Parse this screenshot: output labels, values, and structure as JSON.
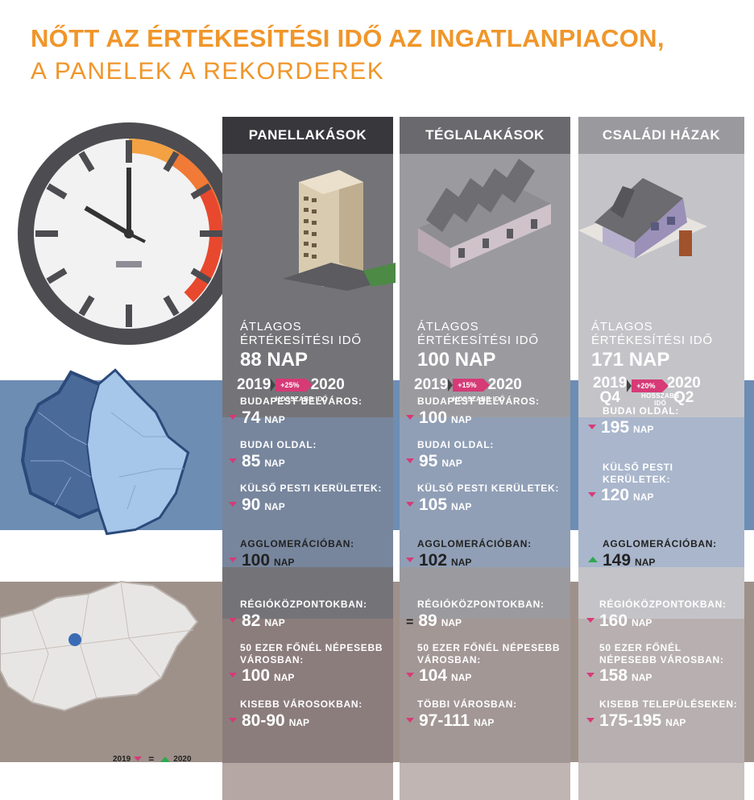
{
  "title": {
    "line1": "NŐTT AZ ÉRTÉKESÍTÉSI IDŐ AZ INGATLANPIACON,",
    "line2": "A PANELEK A REKORDEREK"
  },
  "common": {
    "avg_label_1": "ÁTLAGOS",
    "avg_label_2": "ÉRTÉKESÍTÉSI IDŐ",
    "nap": "NAP",
    "hosszabb": "HOSSZABB IDŐ",
    "hosszabb_1": "HOSSZABB",
    "hosszabb_2": "IDŐ"
  },
  "columns": [
    {
      "header": "PANELLAKÁSOK",
      "avg": "88 NAP",
      "y1": "2019",
      "y2": "2020",
      "change": "+25%",
      "blue": [
        {
          "label": "BUDAPEST BELVÁROS:",
          "value": "74"
        },
        {
          "label": "BUDAI OLDAL:",
          "value": "85"
        },
        {
          "label": "KÜLSŐ PESTI KERÜLETEK:",
          "value": "90"
        }
      ],
      "agglo": {
        "label": "AGGLOMERÁCIÓBAN:",
        "value": "100"
      },
      "brown": [
        {
          "label": "RÉGIÓKÖZPONTOKBAN:",
          "value": "82"
        },
        {
          "label1": "50 EZER FŐNÉL NÉPESEBB",
          "label2": "VÁROSBAN:",
          "value": "100"
        },
        {
          "label": "KISEBB VÁROSOKBAN:",
          "value": "80-90"
        }
      ]
    },
    {
      "header": "TÉGLALAKÁSOK",
      "avg": "100 NAP",
      "y1": "2019",
      "y2": "2020",
      "change": "+15%",
      "blue": [
        {
          "label": "BUDAPEST BELVÁROS:",
          "value": "100"
        },
        {
          "label": "BUDAI OLDAL:",
          "value": "95"
        },
        {
          "label": "KÜLSŐ PESTI KERÜLETEK:",
          "value": "105"
        }
      ],
      "agglo": {
        "label": "AGGLOMERÁCIÓBAN:",
        "value": "102"
      },
      "brown": [
        {
          "label": "RÉGIÓKÖZPONTOKBAN:",
          "value": "89"
        },
        {
          "label1": "50 EZER FŐNÉL NÉPESEBB",
          "label2": "VÁROSBAN:",
          "value": "104"
        },
        {
          "label": "TÖBBI VÁROSBAN:",
          "value": "97-111"
        }
      ]
    },
    {
      "header": "CSALÁDI HÁZAK",
      "avg": "171 NAP",
      "y1": "2019",
      "y1b": "Q4",
      "y2": "2020",
      "y2b": "Q2",
      "change": "+20%",
      "blue": [
        {
          "label": "BUDAI OLDAL:",
          "value": "195"
        },
        {
          "label1": "KÜLSŐ PESTI",
          "label2": "KERÜLETEK:",
          "value": "120"
        }
      ],
      "agglo": {
        "label": "AGGLOMERÁCIÓBAN:",
        "value": "149"
      },
      "brown": [
        {
          "label": "RÉGIÓKÖZPONTOKBAN:",
          "value": "160"
        },
        {
          "label1": "50 EZER FŐNÉL",
          "label2": "NÉPESEBB VÁROSBAN:",
          "value": "158"
        },
        {
          "label": "KISEBB TELEPÜLÉSEKEN:",
          "value": "175-195"
        }
      ]
    }
  ],
  "legend": {
    "y1": "2019",
    "y2": "2020"
  },
  "colors": {
    "accent": "#f0962a",
    "down": "#d63a77",
    "up": "#2fa84f",
    "blue_band": "#6d8db3",
    "brown_band": "#9e918a"
  }
}
